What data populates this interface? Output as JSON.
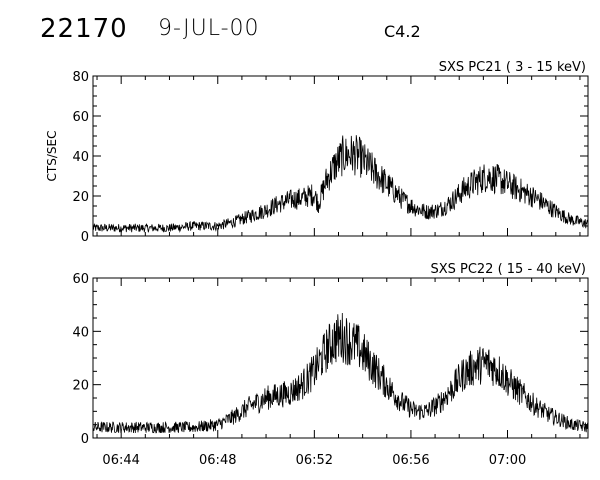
{
  "header": {
    "event_id": "22170",
    "date": "9-JUL-00",
    "flare_class": "C4.2"
  },
  "chart_data": [
    {
      "type": "line",
      "title": "SXS PC21  (  3 - 15 keV)",
      "ylabel": "CTS/SEC",
      "xlabel": "",
      "xlim": [
        "06:42:50",
        "07:03:20"
      ],
      "ylim": [
        0,
        80
      ],
      "yticks": [
        0,
        20,
        40,
        60,
        80
      ],
      "xticks": [
        "06:44",
        "06:48",
        "06:52",
        "06:56",
        "07:00"
      ],
      "show_xtick_labels": false,
      "series": [
        {
          "x": [
            "06:42:50",
            "06:44:00",
            "06:45:00",
            "06:46:00",
            "06:47:00",
            "06:48:00",
            "06:48:40",
            "06:49:20",
            "06:50:00",
            "06:50:30",
            "06:51:00",
            "06:51:30",
            "06:52:00",
            "06:52:10",
            "06:52:30",
            "06:52:50",
            "06:53:10",
            "06:53:30",
            "06:53:50",
            "06:54:10",
            "06:54:40",
            "06:55:10",
            "06:55:40",
            "06:56:10",
            "06:56:40",
            "06:57:10",
            "06:57:40",
            "06:58:10",
            "06:58:40",
            "06:59:10",
            "06:59:40",
            "07:00:10",
            "07:00:40",
            "07:01:10",
            "07:01:40",
            "07:02:10",
            "07:02:40",
            "07:03:20"
          ],
          "values": [
            4,
            4,
            4,
            4,
            5,
            5,
            7,
            10,
            13,
            16,
            18,
            19,
            21,
            16,
            28,
            35,
            40,
            41,
            40,
            36,
            30,
            24,
            18,
            14,
            12,
            13,
            17,
            23,
            27,
            30,
            28,
            25,
            22,
            19,
            15,
            11,
            8,
            6
          ]
        }
      ]
    },
    {
      "type": "line",
      "title": "SXS PC22  ( 15 - 40 keV)",
      "ylabel": "",
      "xlabel": "",
      "xlim": [
        "06:42:50",
        "07:03:20"
      ],
      "ylim": [
        0,
        60
      ],
      "yticks": [
        0,
        20,
        40,
        60
      ],
      "xticks": [
        "06:44",
        "06:48",
        "06:52",
        "06:56",
        "07:00"
      ],
      "show_xtick_labels": true,
      "series": [
        {
          "x": [
            "06:42:50",
            "06:44:00",
            "06:45:00",
            "06:46:00",
            "06:47:00",
            "06:48:00",
            "06:48:40",
            "06:49:20",
            "06:50:00",
            "06:50:30",
            "06:51:00",
            "06:51:30",
            "06:52:00",
            "06:52:30",
            "06:52:50",
            "06:53:10",
            "06:53:30",
            "06:53:50",
            "06:54:10",
            "06:54:40",
            "06:55:10",
            "06:55:40",
            "06:56:10",
            "06:56:40",
            "06:57:10",
            "06:57:40",
            "06:58:10",
            "06:58:40",
            "06:59:10",
            "06:59:40",
            "07:00:10",
            "07:00:40",
            "07:01:10",
            "07:01:40",
            "07:02:10",
            "07:02:40",
            "07:03:20"
          ],
          "values": [
            4,
            4,
            4,
            4,
            4,
            5,
            8,
            12,
            15,
            16,
            17,
            20,
            25,
            33,
            37,
            38,
            36,
            34,
            30,
            24,
            18,
            13,
            10,
            10,
            13,
            18,
            24,
            27,
            28,
            25,
            20,
            16,
            12,
            9,
            7,
            5,
            4
          ]
        }
      ]
    }
  ]
}
